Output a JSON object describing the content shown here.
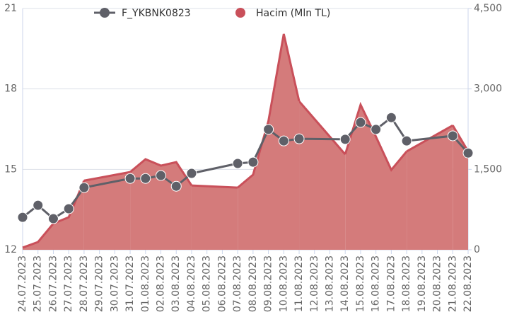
{
  "chart_data": {
    "type": "combo",
    "categories": [
      "24.07.2023",
      "25.07.2023",
      "26.07.2023",
      "27.07.2023",
      "28.07.2023",
      "29.07.2023",
      "30.07.2023",
      "31.07.2023",
      "01.08.2023",
      "02.08.2023",
      "03.08.2023",
      "04.08.2023",
      "05.08.2023",
      "06.08.2023",
      "07.08.2023",
      "08.08.2023",
      "09.08.2023",
      "10.08.2023",
      "11.08.2023",
      "12.08.2023",
      "13.08.2023",
      "14.08.2023",
      "15.08.2023",
      "16.08.2023",
      "17.08.2023",
      "18.08.2023",
      "19.08.2023",
      "20.08.2023",
      "21.08.2023",
      "22.08.2023"
    ],
    "series": [
      {
        "name": "Hacim (Mln TL)",
        "type": "area",
        "axis": "y2",
        "color": "#c9505a",
        "fill": "#d47b7b",
        "values": [
          40,
          145,
          490,
          607,
          1290,
          null,
          null,
          1450,
          1690,
          1570,
          1635,
          1200,
          null,
          null,
          1160,
          1400,
          2400,
          4025,
          2770,
          null,
          null,
          1780,
          2705,
          2110,
          1490,
          1835,
          null,
          null,
          2320,
          1835
        ]
      },
      {
        "name": "F_YKBNK0823",
        "type": "line",
        "axis": "y",
        "color": "#5f6068",
        "values": [
          13.21,
          13.66,
          13.16,
          13.53,
          14.32,
          null,
          null,
          14.66,
          14.66,
          14.77,
          14.37,
          14.85,
          null,
          null,
          15.22,
          15.27,
          16.49,
          16.06,
          16.14,
          null,
          null,
          16.12,
          16.75,
          16.49,
          16.93,
          16.06,
          null,
          null,
          16.25,
          15.61
        ]
      }
    ],
    "connect_nulls": true,
    "ylim": [
      12,
      21
    ],
    "yticks": [
      12,
      15,
      18,
      21
    ],
    "y2lim": [
      0,
      4500
    ],
    "y2ticks": [
      0,
      {
        "value": 1500,
        "label": "1,500"
      },
      {
        "value": 3000,
        "label": "3,000"
      },
      {
        "value": 4500,
        "label": "4,500"
      }
    ],
    "grid": true
  }
}
